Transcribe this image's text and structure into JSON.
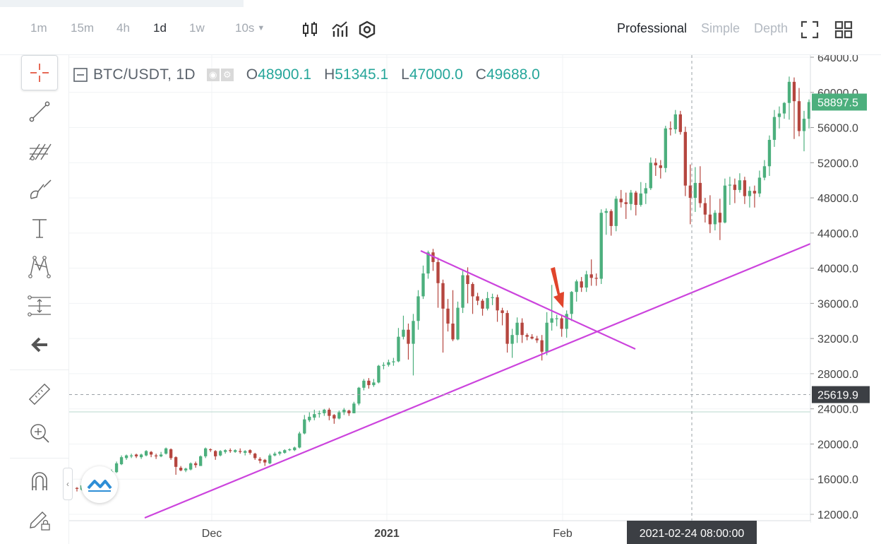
{
  "toolbar": {
    "intervals": [
      "1m",
      "15m",
      "4h",
      "1d",
      "1w",
      "10s"
    ],
    "active_interval": "1d",
    "views": [
      "Professional",
      "Simple",
      "Depth"
    ],
    "active_view": "Professional"
  },
  "legend": {
    "symbol": "BTC/USDT, 1D",
    "open_label": "O",
    "open": "48900.1",
    "high_label": "H",
    "high": "51345.1",
    "low_label": "L",
    "low": "47000.0",
    "close_label": "C",
    "close": "49688.0"
  },
  "left_tools": [
    "crosshair-icon",
    "trend-line-icon",
    "fib-tool-icon",
    "brush-icon",
    "text-icon",
    "pattern-icon",
    "measure-icon",
    "back-arrow-icon",
    "ruler-icon",
    "zoom-in-icon",
    "magnet-icon",
    "lock-pencil-icon"
  ],
  "colors": {
    "up": "#4caf7d",
    "down": "#b5463f",
    "trendline": "#cc44dd",
    "arrow": "#e0452c",
    "last_price_bg": "#4caf7d",
    "tooltip_bg": "#3c3f44"
  },
  "chart_data": {
    "type": "candlestick",
    "title": "BTC/USDT, 1D",
    "y_ticks": [
      "64000.0",
      "60000.0",
      "56000.0",
      "52000.0",
      "48000.0",
      "44000.0",
      "40000.0",
      "36000.0",
      "32000.0",
      "28000.0",
      "24000.0",
      "20000.0",
      "16000.0",
      "12000.0"
    ],
    "ylim": [
      11900,
      64300
    ],
    "x_ticks": [
      "Dec",
      "2021",
      "Feb"
    ],
    "last_price": "58897.5",
    "crosshair_price": "25619.9",
    "crosshair_time": "2021-02-24 08:00:00",
    "candles": [
      [
        15000,
        14900,
        15100,
        14600
      ],
      [
        14800,
        15300,
        15500,
        14700
      ],
      [
        15300,
        15400,
        15500,
        14900
      ],
      [
        15500,
        15800,
        15900,
        15200
      ],
      [
        15900,
        15800,
        16100,
        15700
      ],
      [
        15700,
        16300,
        16400,
        15600
      ],
      [
        16200,
        16000,
        16300,
        15900
      ],
      [
        16000,
        16900,
        17100,
        15900
      ],
      [
        16800,
        17800,
        18000,
        16700
      ],
      [
        17700,
        18500,
        18700,
        17600
      ],
      [
        18400,
        18700,
        18800,
        18200
      ],
      [
        18600,
        18700,
        18900,
        18400
      ],
      [
        18800,
        18600,
        18900,
        18400
      ],
      [
        18500,
        18800,
        18900,
        18300
      ],
      [
        18700,
        19200,
        19300,
        18600
      ],
      [
        19100,
        18800,
        19200,
        18500
      ],
      [
        18700,
        18600,
        18900,
        18300
      ],
      [
        18600,
        18800,
        19100,
        18500
      ],
      [
        18900,
        19500,
        19600,
        18800
      ],
      [
        19400,
        18400,
        19500,
        18200
      ],
      [
        18500,
        17400,
        18600,
        16500
      ],
      [
        17300,
        17000,
        17500,
        16900
      ],
      [
        17000,
        17200,
        17300,
        16800
      ],
      [
        17100,
        17800,
        17900,
        17000
      ],
      [
        17800,
        17600,
        18000,
        17300
      ],
      [
        17500,
        18600,
        18700,
        17500
      ],
      [
        18600,
        19500,
        19600,
        18400
      ],
      [
        19400,
        19300,
        19500,
        19100
      ],
      [
        19200,
        18600,
        19300,
        18200
      ],
      [
        18700,
        19200,
        19300,
        18600
      ],
      [
        19100,
        19300,
        19400,
        18900
      ],
      [
        19300,
        19200,
        19500,
        19000
      ],
      [
        19100,
        19300,
        19400,
        19000
      ],
      [
        19200,
        19100,
        19500,
        18900
      ],
      [
        19000,
        19200,
        19300,
        18700
      ],
      [
        19300,
        19000,
        19400,
        18800
      ],
      [
        18900,
        18400,
        19000,
        18200
      ],
      [
        18300,
        18100,
        18500,
        17800
      ],
      [
        18200,
        17900,
        18300,
        17500
      ],
      [
        17800,
        18700,
        18900,
        17700
      ],
      [
        18700,
        18900,
        19100,
        18600
      ],
      [
        18900,
        19100,
        19200,
        18700
      ],
      [
        19000,
        19300,
        19400,
        18900
      ],
      [
        19300,
        19400,
        19500,
        19200
      ],
      [
        19300,
        19600,
        19700,
        19200
      ],
      [
        19600,
        21200,
        21400,
        19500
      ],
      [
        21200,
        22800,
        23300,
        21100
      ],
      [
        22700,
        23100,
        23600,
        22500
      ],
      [
        23000,
        23400,
        23900,
        22700
      ],
      [
        23400,
        23500,
        23800,
        23000
      ],
      [
        23500,
        23900,
        24000,
        23200
      ],
      [
        23900,
        23200,
        24100,
        22700
      ],
      [
        23300,
        22900,
        23400,
        22300
      ],
      [
        22900,
        23600,
        23800,
        22800
      ],
      [
        23600,
        23900,
        24100,
        23300
      ],
      [
        23800,
        23500,
        23900,
        23200
      ],
      [
        23500,
        24600,
        24800,
        23500
      ],
      [
        24600,
        26400,
        26500,
        24400
      ],
      [
        26400,
        27200,
        27400,
        26100
      ],
      [
        27200,
        26700,
        27500,
        26300
      ],
      [
        26700,
        27000,
        27400,
        26500
      ],
      [
        27000,
        28900,
        29000,
        26900
      ],
      [
        28900,
        29000,
        29300,
        28500
      ],
      [
        29000,
        29300,
        29600,
        28800
      ],
      [
        29300,
        29400,
        29800,
        28900
      ],
      [
        29400,
        32200,
        33200,
        29300
      ],
      [
        32200,
        33000,
        34600,
        31900
      ],
      [
        33000,
        31400,
        33700,
        29600
      ],
      [
        31400,
        34000,
        34800,
        27800
      ],
      [
        34000,
        36800,
        37500,
        33000
      ],
      [
        36800,
        39400,
        40300,
        36500
      ],
      [
        39400,
        41800,
        42000,
        38800
      ],
      [
        41800,
        40700,
        42200,
        39700
      ],
      [
        40700,
        38300,
        41200,
        35500
      ],
      [
        38300,
        35400,
        38700,
        30400
      ],
      [
        35400,
        33700,
        36500,
        32800
      ],
      [
        33700,
        31900,
        37500,
        31700
      ],
      [
        31900,
        35500,
        36200,
        31800
      ],
      [
        35500,
        39200,
        39700,
        34900
      ],
      [
        39200,
        38200,
        40100,
        36000
      ],
      [
        38200,
        36800,
        38400,
        34800
      ],
      [
        36800,
        36300,
        37200,
        35800
      ],
      [
        36300,
        35400,
        36500,
        34600
      ],
      [
        35400,
        36600,
        37300,
        35200
      ],
      [
        36600,
        36700,
        37100,
        35800
      ],
      [
        36700,
        35200,
        37000,
        33900
      ],
      [
        35200,
        34900,
        35500,
        33500
      ],
      [
        34900,
        31400,
        35200,
        30400
      ],
      [
        31400,
        32400,
        33100,
        29800
      ],
      [
        32400,
        33800,
        34400,
        31500
      ],
      [
        33800,
        32400,
        34300,
        31500
      ],
      [
        32400,
        32200,
        32600,
        31800
      ],
      [
        32200,
        32000,
        32500,
        31900
      ],
      [
        32000,
        31800,
        32300,
        31500
      ],
      [
        31800,
        30500,
        32400,
        29500
      ],
      [
        30500,
        33800,
        35000,
        30100
      ],
      [
        33800,
        34300,
        38100,
        32900
      ],
      [
        34300,
        34300,
        34700,
        33400
      ],
      [
        34300,
        33100,
        34700,
        32200
      ],
      [
        33100,
        34800,
        35200,
        32100
      ],
      [
        34800,
        37300,
        37400,
        34000
      ],
      [
        37300,
        38500,
        38700,
        36200
      ],
      [
        38500,
        37800,
        39000,
        37300
      ],
      [
        37800,
        39300,
        39700,
        37300
      ],
      [
        39300,
        38900,
        41000,
        38000
      ],
      [
        38900,
        38800,
        39400,
        38000
      ],
      [
        38800,
        46300,
        46700,
        38200
      ],
      [
        46300,
        46500,
        46800,
        43800
      ],
      [
        46500,
        44800,
        46700,
        43700
      ],
      [
        44800,
        47900,
        48200,
        44200
      ],
      [
        47900,
        47500,
        48900,
        46900
      ],
      [
        47500,
        47300,
        48600,
        45600
      ],
      [
        47300,
        48600,
        48900,
        46600
      ],
      [
        48600,
        47200,
        48800,
        46000
      ],
      [
        47200,
        48500,
        49800,
        47000
      ],
      [
        48500,
        49100,
        49700,
        47300
      ],
      [
        49100,
        52000,
        52600,
        48900
      ],
      [
        52000,
        51700,
        52500,
        50500
      ],
      [
        51700,
        51400,
        52300,
        50200
      ],
      [
        51400,
        55900,
        56200,
        50900
      ],
      [
        55900,
        55800,
        56700,
        55100
      ],
      [
        55800,
        57500,
        58000,
        55300
      ],
      [
        57500,
        55500,
        57900,
        55200
      ],
      [
        55500,
        49400,
        56100,
        48200
      ],
      [
        49400,
        48000,
        51800,
        45000
      ],
      [
        48000,
        49700,
        51500,
        46400
      ],
      [
        49700,
        47400,
        51600,
        46900
      ],
      [
        47400,
        46100,
        48000,
        45200
      ],
      [
        46100,
        45000,
        48300,
        44000
      ],
      [
        45000,
        46300,
        46600,
        44300
      ],
      [
        46300,
        45200,
        47900,
        43200
      ],
      [
        45200,
        49400,
        50200,
        45100
      ],
      [
        49400,
        49500,
        50400,
        47200
      ],
      [
        49500,
        48900,
        50200,
        47400
      ],
      [
        48900,
        50000,
        50800,
        48600
      ],
      [
        50000,
        48200,
        50400,
        47300
      ],
      [
        48200,
        48800,
        49300,
        46900
      ],
      [
        48800,
        48500,
        49400,
        46900
      ],
      [
        48500,
        50300,
        51100,
        48100
      ],
      [
        50300,
        51600,
        52300,
        50000
      ],
      [
        51600,
        54600,
        55100,
        50500
      ],
      [
        54600,
        57200,
        58000,
        53800
      ],
      [
        57200,
        57600,
        58400,
        55900
      ],
      [
        57600,
        58800,
        58900,
        57000
      ],
      [
        58800,
        61200,
        61800,
        56900
      ],
      [
        61200,
        59000,
        61700,
        54700
      ],
      [
        59000,
        55600,
        60500,
        55000
      ],
      [
        55600,
        57000,
        57900,
        53300
      ],
      [
        57000,
        58900,
        59200,
        55900
      ]
    ]
  }
}
